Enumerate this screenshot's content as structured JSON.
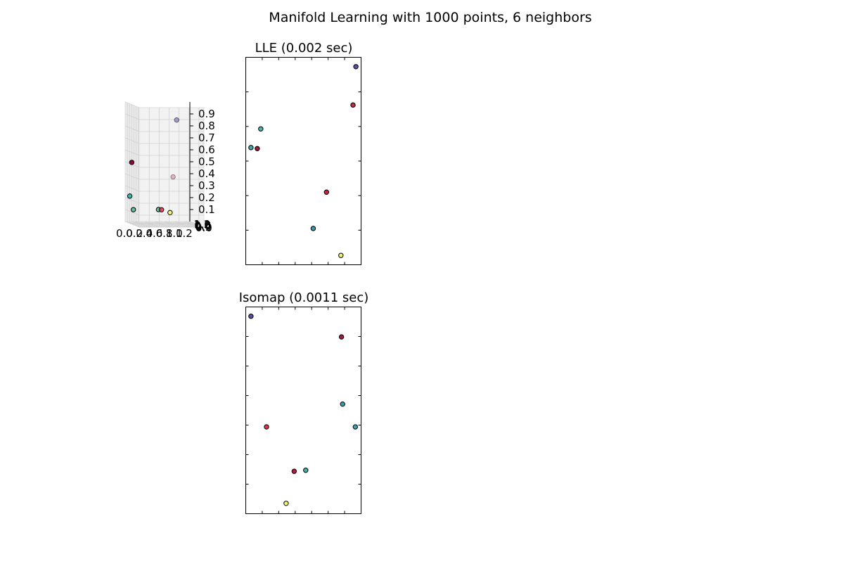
{
  "figure": {
    "suptitle": "Manifold Learning with 1000 points, 6 neighbors"
  },
  "chart_data": [
    {
      "type": "scatter",
      "projection": "3d",
      "title": "",
      "xlabel": "",
      "ylabel": "",
      "zlabel": "",
      "z_ticks": [
        "0.9",
        "0.8",
        "0.7",
        "0.6",
        "0.5",
        "0.4",
        "0.3",
        "0.2",
        "0.1"
      ],
      "x_ticks": [
        "0.0",
        "0.2",
        "0.4",
        "0.6",
        "0.8",
        "1.0",
        "1.2"
      ],
      "y_ticks": [
        "0.0",
        "0.2",
        "0.4",
        "0.6",
        "0.8",
        "1.0",
        "1.2"
      ],
      "grid": true,
      "points": [
        {
          "x": 0.85,
          "y": 0.85,
          "z": 0.88,
          "color": "#6a5fa8",
          "alpha": 0.55
        },
        {
          "x": 0.1,
          "y": 0.15,
          "z": 0.5,
          "color": "#9e0142",
          "alpha": 1.0
        },
        {
          "x": 0.8,
          "y": 0.75,
          "z": 0.4,
          "color": "#d0587e",
          "alpha": 0.4
        },
        {
          "x": 0.05,
          "y": 0.2,
          "z": 0.22,
          "color": "#3eb8a6",
          "alpha": 1.0
        },
        {
          "x": 0.1,
          "y": 0.3,
          "z": 0.11,
          "color": "#5fc1a4",
          "alpha": 1.0
        },
        {
          "x": 0.55,
          "y": 0.55,
          "z": 0.12,
          "color": "#66c2a5",
          "alpha": 1.0
        },
        {
          "x": 0.6,
          "y": 0.6,
          "z": 0.12,
          "color": "#d53e4f",
          "alpha": 0.9
        },
        {
          "x": 0.75,
          "y": 0.7,
          "z": 0.1,
          "color": "#f4f27a",
          "alpha": 1.0
        }
      ]
    },
    {
      "type": "scatter",
      "title": "LLE (0.002 sec)",
      "xlabel": "",
      "ylabel": "",
      "xlim": [
        0,
        1
      ],
      "ylim": [
        0,
        1
      ],
      "grid": false,
      "points": [
        {
          "x": 0.955,
          "y": 0.955,
          "color": "#5e4fa2"
        },
        {
          "x": 0.93,
          "y": 0.77,
          "color": "#c02b45"
        },
        {
          "x": 0.13,
          "y": 0.655,
          "color": "#4eb3a9"
        },
        {
          "x": 0.045,
          "y": 0.565,
          "color": "#3fa8a6"
        },
        {
          "x": 0.1,
          "y": 0.56,
          "color": "#a5123f"
        },
        {
          "x": 0.7,
          "y": 0.35,
          "color": "#d01c45"
        },
        {
          "x": 0.585,
          "y": 0.175,
          "color": "#3a9aa8"
        },
        {
          "x": 0.825,
          "y": 0.045,
          "color": "#f2f07c"
        }
      ]
    },
    {
      "type": "scatter",
      "title": "Isomap (0.0011 sec)",
      "xlabel": "",
      "ylabel": "",
      "xlim": [
        0,
        1
      ],
      "ylim": [
        0,
        1
      ],
      "grid": false,
      "points": [
        {
          "x": 0.045,
          "y": 0.955,
          "color": "#5e4fa2"
        },
        {
          "x": 0.83,
          "y": 0.855,
          "color": "#a8173f"
        },
        {
          "x": 0.84,
          "y": 0.53,
          "color": "#3a9bac"
        },
        {
          "x": 0.95,
          "y": 0.42,
          "color": "#3aa3b3"
        },
        {
          "x": 0.18,
          "y": 0.42,
          "color": "#d73847"
        },
        {
          "x": 0.52,
          "y": 0.21,
          "color": "#44b0aa"
        },
        {
          "x": 0.42,
          "y": 0.205,
          "color": "#b51a44"
        },
        {
          "x": 0.35,
          "y": 0.05,
          "color": "#f4f07a"
        }
      ]
    }
  ]
}
